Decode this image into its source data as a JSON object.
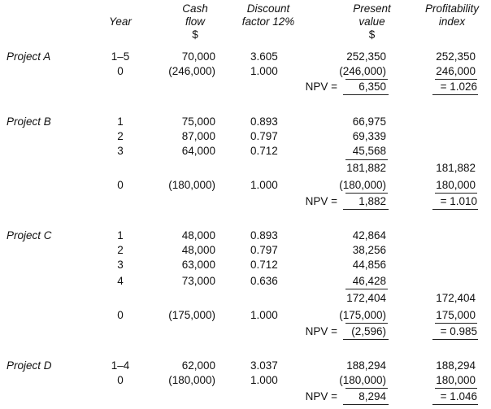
{
  "headers": {
    "year": "Year",
    "cash_flow": [
      "Cash",
      "flow",
      "$"
    ],
    "discount": [
      "Discount",
      "factor 12%"
    ],
    "pv": [
      "Present",
      "value",
      "$"
    ],
    "pi": [
      "Profitability",
      "index"
    ]
  },
  "npv_label": "NPV =",
  "projects": [
    {
      "name": "Project A",
      "rows": [
        {
          "year": "1–5",
          "cf": "70,000",
          "df": "3.605",
          "pv": "252,350",
          "pi": "252,350"
        },
        {
          "year": "0",
          "cf": "(246,000)",
          "df": "1.000",
          "pv": "(246,000)",
          "pi": "246,000"
        }
      ],
      "npv": "6,350",
      "pi_result": "= 1.026"
    },
    {
      "name": "Project B",
      "rows": [
        {
          "year": "1",
          "cf": "75,000",
          "df": "0.893",
          "pv": "66,975"
        },
        {
          "year": "2",
          "cf": "87,000",
          "df": "0.797",
          "pv": "69,339"
        },
        {
          "year": "3",
          "cf": "64,000",
          "df": "0.712",
          "pv": "45,568"
        }
      ],
      "subtotal": {
        "pv": "181,882",
        "pi": "181,882"
      },
      "outlay": {
        "year": "0",
        "cf": "(180,000)",
        "df": "1.000",
        "pv": "(180,000)",
        "pi": "180,000"
      },
      "npv": "1,882",
      "pi_result": "= 1.010"
    },
    {
      "name": "Project C",
      "rows": [
        {
          "year": "1",
          "cf": "48,000",
          "df": "0.893",
          "pv": "42,864"
        },
        {
          "year": "2",
          "cf": "48,000",
          "df": "0.797",
          "pv": "38,256"
        },
        {
          "year": "3",
          "cf": "63,000",
          "df": "0.712",
          "pv": "44,856"
        },
        {
          "year": "4",
          "cf": "73,000",
          "df": "0.636",
          "pv": "46,428"
        }
      ],
      "subtotal": {
        "pv": "172,404",
        "pi": "172,404"
      },
      "outlay": {
        "year": "0",
        "cf": "(175,000)",
        "df": "1.000",
        "pv": "(175,000)",
        "pi": "175,000"
      },
      "npv": "(2,596)",
      "pi_result": "= 0.985"
    },
    {
      "name": "Project D",
      "rows": [
        {
          "year": "1–4",
          "cf": "62,000",
          "df": "3.037",
          "pv": "188,294",
          "pi": "188,294"
        },
        {
          "year": "0",
          "cf": "(180,000)",
          "df": "1.000",
          "pv": "(180,000)",
          "pi": "180,000"
        }
      ],
      "npv": "8,294",
      "pi_result": "= 1.046"
    }
  ]
}
